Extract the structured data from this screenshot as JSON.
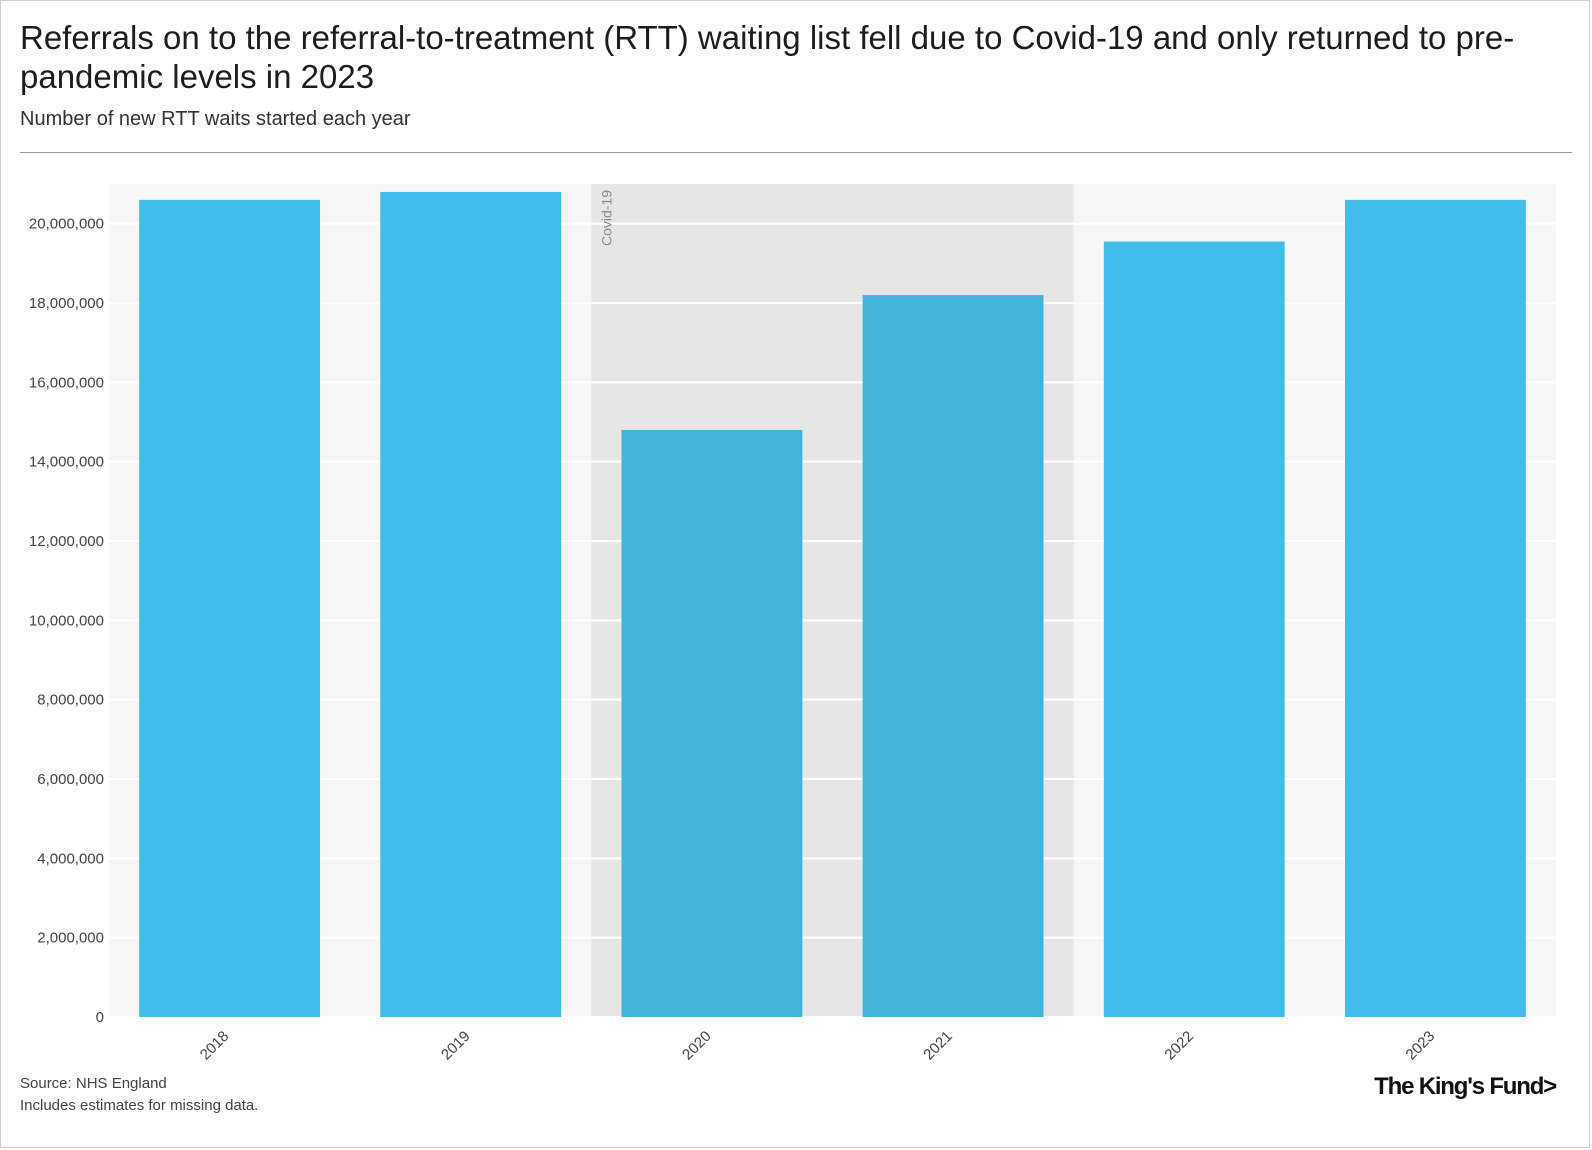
{
  "header": {
    "title": "Referrals on to the referral-to-treatment (RTT) waiting list fell due to Covid-19 and only returned to pre-pandemic levels in 2023",
    "subtitle": "Number of new RTT waits started each year"
  },
  "chart_data": {
    "type": "bar",
    "title": "Referrals on to the referral-to-treatment (RTT) waiting list fell due to Covid-19 and only returned to pre-pandemic levels in 2023",
    "subtitle": "Number of new RTT waits started each year",
    "categories": [
      "2018",
      "2019",
      "2020",
      "2021",
      "2022",
      "2023"
    ],
    "values": [
      20600000,
      20800000,
      14800000,
      18200000,
      19550000,
      20600000
    ],
    "ylim": [
      0,
      21000000
    ],
    "yticks": [
      0,
      2000000,
      4000000,
      6000000,
      8000000,
      10000000,
      12000000,
      14000000,
      16000000,
      18000000,
      20000000
    ],
    "ytick_labels": [
      "0",
      "2,000,000",
      "4,000,000",
      "6,000,000",
      "8,000,000",
      "10,000,000",
      "12,000,000",
      "14,000,000",
      "16,000,000",
      "18,000,000",
      "20,000,000"
    ],
    "grid": true,
    "annotation": {
      "label": "Covid-19",
      "from_category": "2020",
      "to_category": "2021"
    },
    "colors": {
      "bar": "#42bce9",
      "bar_highlight": "#44b3da",
      "plot_background": "#f6f6f6",
      "band": "#e6e6e6",
      "grid": "#ffffff"
    }
  },
  "footer": {
    "source": "Source: NHS England",
    "note": "Includes estimates for missing data."
  },
  "brand": {
    "logo_text": "The King's Fund>"
  }
}
